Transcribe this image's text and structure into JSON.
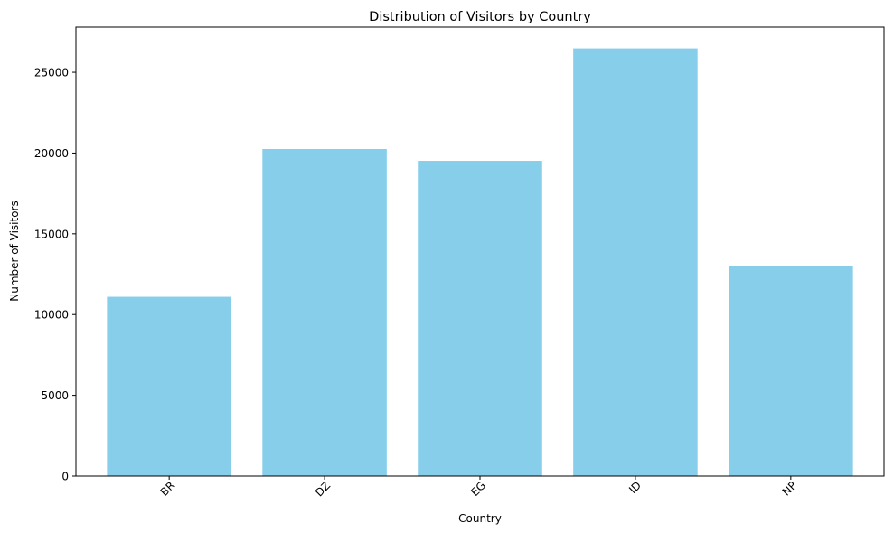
{
  "chart_data": {
    "type": "bar",
    "title": "Distribution of Visitors by Country",
    "xlabel": "Country",
    "ylabel": "Number of Visitors",
    "categories": [
      "BR",
      "DZ",
      "EG",
      "ID",
      "NP"
    ],
    "values": [
      11100,
      20250,
      19520,
      26480,
      13020
    ],
    "ylim": [
      0,
      27800
    ],
    "yticks": [
      0,
      5000,
      10000,
      15000,
      20000,
      25000
    ],
    "ytick_labels": [
      "0",
      "5000",
      "10000",
      "15000",
      "20000",
      "25000"
    ],
    "xtick_rotation": 45,
    "bar_color": "#87ceeb",
    "grid": false,
    "legend": "none"
  }
}
